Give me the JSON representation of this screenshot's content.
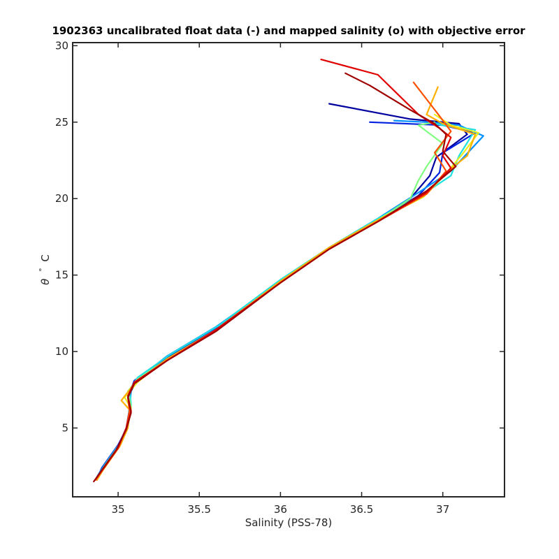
{
  "chart_data": {
    "type": "line",
    "title": "1902363 uncalibrated float data (-) and mapped salinity (o) with objective error",
    "xlabel": "Salinity (PSS-78)",
    "ylabel_symbol": "θ",
    "ylabel_degree": "°",
    "ylabel_unit": "C",
    "xlim": [
      34.72,
      37.38
    ],
    "ylim": [
      0.5,
      30.2
    ],
    "xticks": [
      35,
      35.5,
      36,
      36.5,
      37
    ],
    "xtick_labels": [
      "35",
      "35.5",
      "36",
      "36.5",
      "37"
    ],
    "yticks": [
      5,
      10,
      15,
      20,
      25,
      30
    ],
    "ytick_labels": [
      "5",
      "10",
      "15",
      "20",
      "25",
      "30"
    ],
    "grid": false,
    "colormap": "jet (early profiles blue, late profiles dark red)",
    "series": [
      {
        "color": "#0000a0",
        "x": [
          34.87,
          34.9,
          35.0,
          35.05,
          35.07,
          35.06,
          35.1,
          35.3,
          35.6,
          36.0,
          36.3,
          36.6,
          36.8,
          36.92,
          36.96,
          37.15,
          37.1,
          36.8,
          36.3
        ],
        "y": [
          1.6,
          2.3,
          3.8,
          5.0,
          6.2,
          7.2,
          8.0,
          9.5,
          11.5,
          14.6,
          16.8,
          18.6,
          20.0,
          21.5,
          22.7,
          24.2,
          24.9,
          25.2,
          26.2
        ]
      },
      {
        "color": "#0020e0",
        "x": [
          34.87,
          34.9,
          35.0,
          35.06,
          35.07,
          35.07,
          35.1,
          35.3,
          35.6,
          36.0,
          36.3,
          36.6,
          36.85,
          36.98,
          37.0,
          37.2,
          37.0,
          36.55
        ],
        "y": [
          1.7,
          2.4,
          3.9,
          5.1,
          6.3,
          7.3,
          8.1,
          9.6,
          11.5,
          14.6,
          16.8,
          18.6,
          20.2,
          21.7,
          23.0,
          24.3,
          24.8,
          25.0
        ]
      },
      {
        "color": "#0090ff",
        "x": [
          34.87,
          34.91,
          35.01,
          35.06,
          35.07,
          35.08,
          35.12,
          35.3,
          35.6,
          36.0,
          36.3,
          36.6,
          36.85,
          37.05,
          37.25,
          37.1,
          36.9,
          36.7
        ],
        "y": [
          1.8,
          2.5,
          4.0,
          5.2,
          6.4,
          7.4,
          8.2,
          9.7,
          11.6,
          14.6,
          16.8,
          18.7,
          20.4,
          21.8,
          24.1,
          24.8,
          25.0,
          25.1
        ]
      },
      {
        "color": "#20e0e0",
        "x": [
          34.88,
          34.92,
          35.02,
          35.06,
          35.08,
          35.07,
          35.12,
          35.32,
          35.62,
          36.0,
          36.3,
          36.6,
          36.88,
          37.05,
          37.1,
          37.2,
          36.95,
          37.1
        ],
        "y": [
          1.9,
          2.6,
          4.1,
          5.3,
          6.5,
          7.5,
          8.3,
          9.8,
          11.7,
          14.7,
          16.8,
          18.7,
          20.3,
          21.5,
          22.8,
          24.5,
          24.9,
          24.6
        ]
      },
      {
        "color": "#80ff80",
        "x": [
          34.88,
          34.92,
          35.02,
          35.06,
          35.08,
          35.06,
          35.12,
          35.33,
          35.63,
          36.0,
          36.3,
          36.6,
          36.8,
          36.85,
          36.9,
          37.0,
          36.85,
          36.95
        ],
        "y": [
          1.8,
          2.5,
          4.0,
          5.2,
          6.4,
          7.4,
          8.2,
          9.7,
          11.6,
          14.6,
          16.8,
          18.6,
          20.0,
          21.2,
          22.1,
          23.6,
          24.8,
          25.0
        ]
      },
      {
        "color": "#e8f020",
        "x": [
          34.87,
          34.91,
          35.01,
          35.06,
          35.08,
          35.04,
          35.12,
          35.3,
          35.62,
          36.0,
          36.3,
          36.6,
          36.88,
          37.0,
          37.12,
          37.22,
          37.05,
          36.95
        ],
        "y": [
          1.7,
          2.4,
          3.9,
          5.1,
          6.3,
          7.0,
          8.0,
          9.5,
          11.5,
          14.6,
          16.8,
          18.6,
          20.1,
          21.4,
          22.9,
          24.3,
          24.8,
          25.5
        ]
      },
      {
        "color": "#ffb000",
        "x": [
          34.87,
          34.91,
          35.01,
          35.06,
          35.07,
          35.02,
          35.1,
          35.3,
          35.6,
          36.0,
          36.3,
          36.6,
          36.9,
          37.02,
          37.15,
          37.2,
          37.0,
          36.9,
          36.97
        ],
        "y": [
          1.6,
          2.3,
          3.8,
          5.0,
          6.2,
          6.8,
          7.9,
          9.5,
          11.4,
          14.6,
          16.8,
          18.6,
          20.3,
          21.7,
          22.8,
          24.2,
          24.9,
          25.5,
          27.3
        ]
      },
      {
        "color": "#ff5000",
        "x": [
          34.86,
          34.9,
          35.0,
          35.05,
          35.07,
          35.06,
          35.1,
          35.3,
          35.6,
          36.0,
          36.3,
          36.6,
          36.9,
          37.02,
          36.95,
          37.05,
          36.98,
          36.9,
          36.82
        ],
        "y": [
          1.6,
          2.2,
          3.7,
          5.0,
          6.1,
          7.0,
          7.9,
          9.4,
          11.4,
          14.5,
          16.7,
          18.5,
          20.3,
          21.8,
          23.0,
          24.4,
          25.4,
          26.5,
          27.6
        ]
      },
      {
        "color": "#e00000",
        "x": [
          34.86,
          34.9,
          35.0,
          35.05,
          35.08,
          35.06,
          35.1,
          35.3,
          35.6,
          36.0,
          36.3,
          36.6,
          36.9,
          37.05,
          37.0,
          37.05,
          36.98,
          36.85,
          36.6,
          36.25
        ],
        "y": [
          1.6,
          2.2,
          3.7,
          5.0,
          6.1,
          7.1,
          8.0,
          9.4,
          11.4,
          14.5,
          16.7,
          18.5,
          20.4,
          22.0,
          22.8,
          24.0,
          24.6,
          25.5,
          28.1,
          29.1
        ]
      },
      {
        "color": "#a00000",
        "x": [
          34.85,
          34.89,
          34.99,
          35.05,
          35.08,
          35.06,
          35.1,
          35.3,
          35.6,
          36.0,
          36.3,
          36.6,
          36.9,
          37.08,
          37.0,
          37.02,
          36.95,
          36.8,
          36.55,
          36.4
        ],
        "y": [
          1.5,
          2.1,
          3.6,
          4.9,
          6.0,
          7.0,
          7.9,
          9.4,
          11.3,
          14.5,
          16.7,
          18.5,
          20.5,
          22.1,
          23.1,
          24.2,
          24.9,
          25.8,
          27.4,
          28.2
        ]
      }
    ]
  }
}
